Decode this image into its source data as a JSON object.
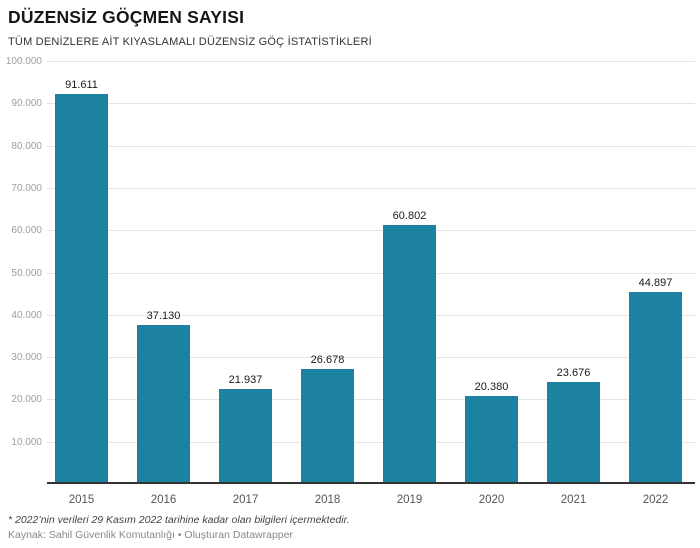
{
  "header": {
    "title": "DÜZENSİZ GÖÇMEN SAYISI",
    "subtitle": "TÜM DENİZLERE AİT KIYASLAMALI DÜZENSİZ GÖÇ İSTATİSTİKLERİ"
  },
  "chart_data": {
    "type": "bar",
    "title": "DÜZENSİZ GÖÇMEN SAYISI",
    "subtitle": "TÜM DENİZLERE AİT KIYASLAMALI DÜZENSİZ GÖÇ İSTATİSTİKLERİ",
    "categories": [
      "2015",
      "2016",
      "2017",
      "2018",
      "2019",
      "2020",
      "2021",
      "2022"
    ],
    "values": [
      91611,
      37130,
      21937,
      26678,
      60802,
      20380,
      23676,
      44897
    ],
    "value_labels": [
      "91.611",
      "37.130",
      "21.937",
      "26.678",
      "60.802",
      "20.380",
      "23.676",
      "44.897"
    ],
    "y_ticks": [
      {
        "value": 10000,
        "label": "10.000"
      },
      {
        "value": 20000,
        "label": "20.000"
      },
      {
        "value": 30000,
        "label": "30.000"
      },
      {
        "value": 40000,
        "label": "40.000"
      },
      {
        "value": 50000,
        "label": "50.000"
      },
      {
        "value": 60000,
        "label": "60.000"
      },
      {
        "value": 70000,
        "label": "70.000"
      },
      {
        "value": 80000,
        "label": "80.000"
      },
      {
        "value": 90000,
        "label": "90.000"
      },
      {
        "value": 100000,
        "label": "100.000"
      }
    ],
    "ylim": [
      0,
      100000
    ],
    "xlabel": "",
    "ylabel": "",
    "grid": true,
    "legend": false,
    "bar_color": "#1d81a2"
  },
  "footer": {
    "footnote": "* 2022’nin verileri 29 Kasım 2022 tarihine kadar olan bilgileri içermektedir.",
    "source": "Kaynak: Sahil Güvenlik Komutanlığı • Oluşturan Datawrapper"
  }
}
